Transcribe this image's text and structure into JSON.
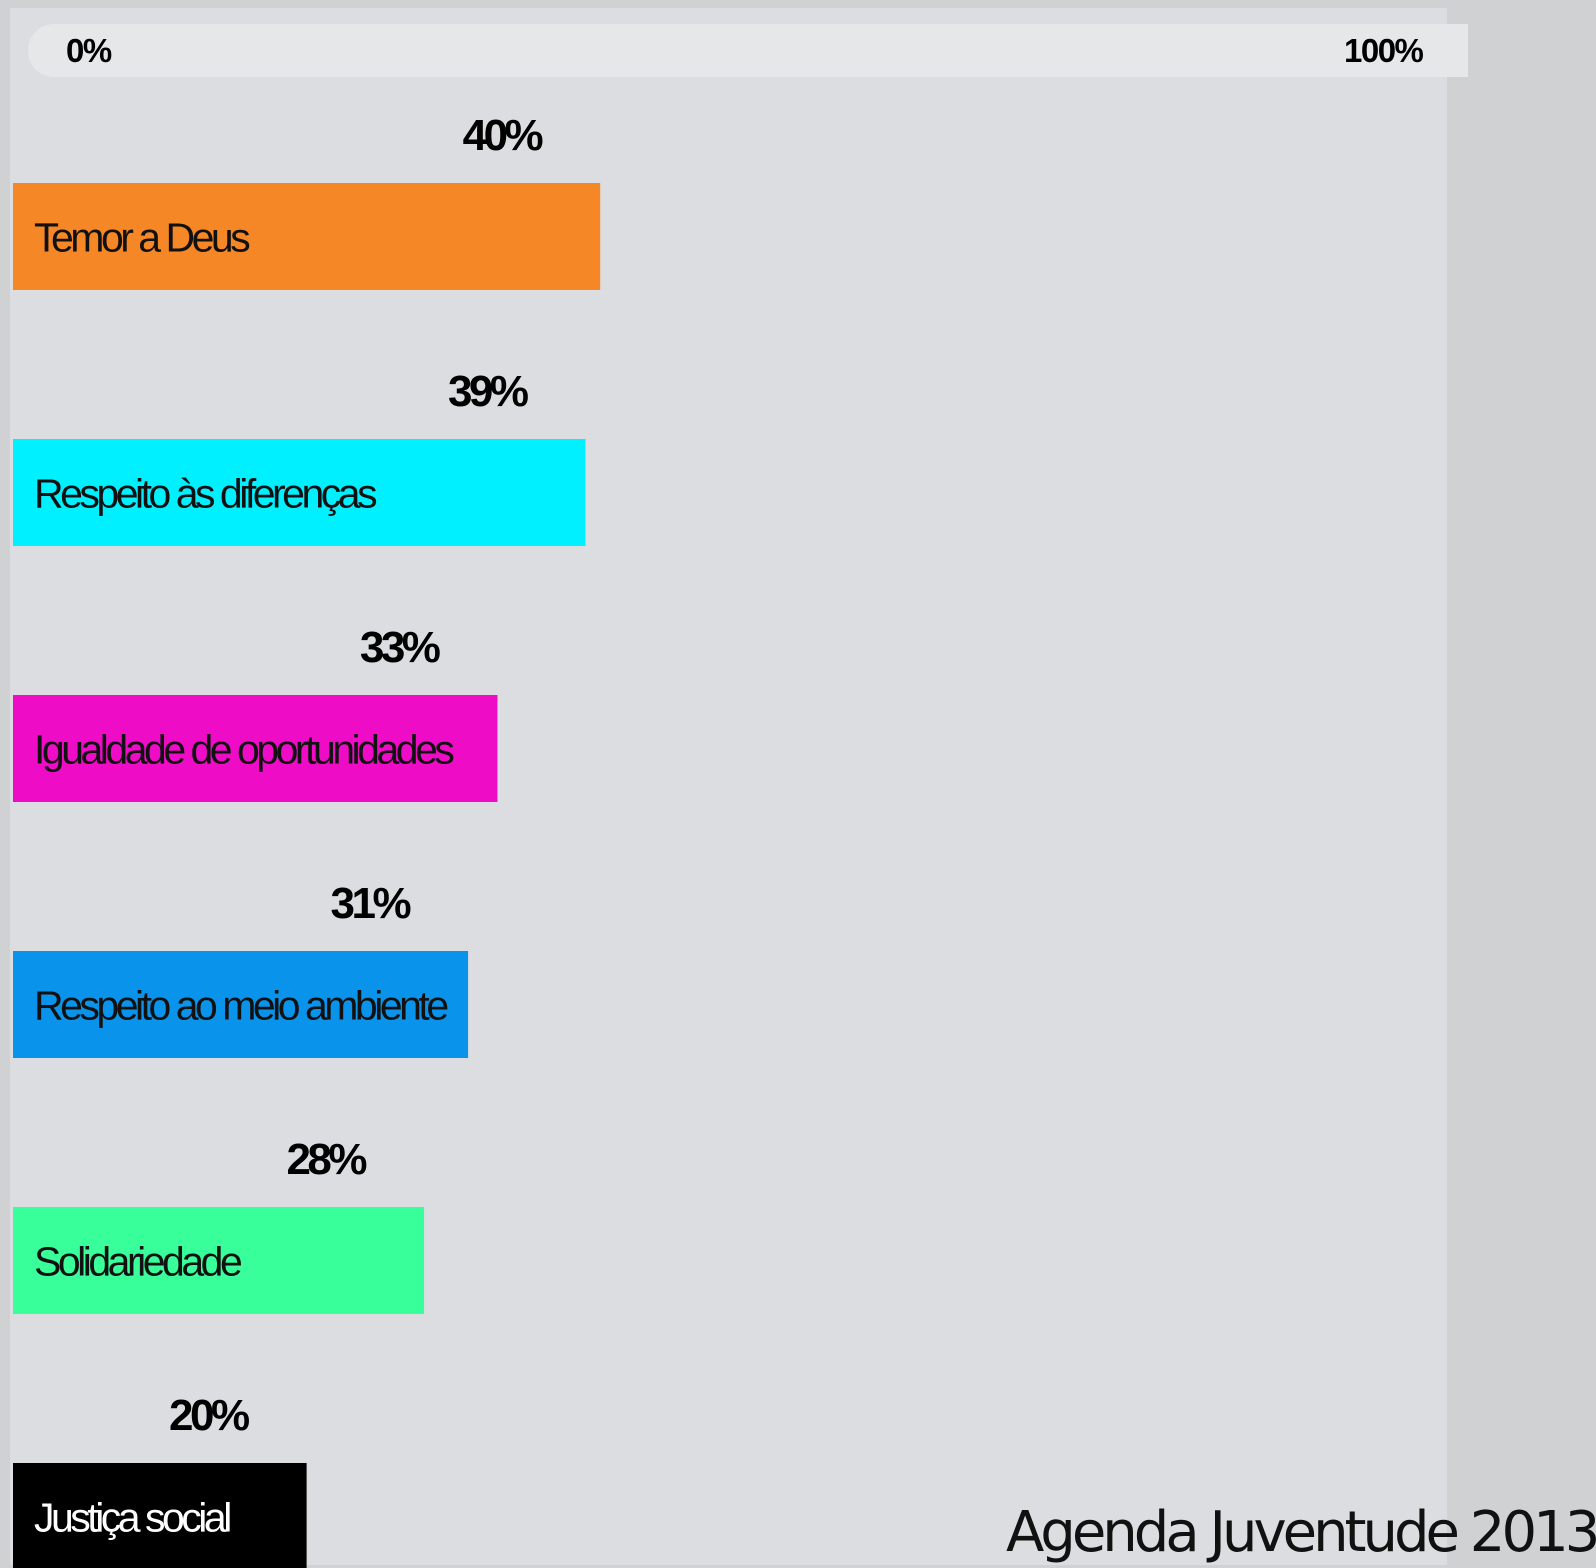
{
  "scale": {
    "min_label": "0%",
    "max_label": "100%"
  },
  "chart_data": {
    "type": "bar",
    "orientation": "horizontal",
    "categories": [
      "Temor a Deus",
      "Respeito às diferenças",
      "Igualdade de oportunidades",
      "Respeito ao meio ambiente",
      "Solidariedade",
      "Justiça social"
    ],
    "values": [
      40,
      39,
      33,
      31,
      28,
      20
    ],
    "value_labels": [
      "40%",
      "39%",
      "33%",
      "31%",
      "28%",
      "20%"
    ],
    "colors": [
      "#f58726",
      "#00f0ff",
      "#ee0cc6",
      "#0a93ea",
      "#38ff99",
      "#000000"
    ],
    "label_colors": [
      "#111111",
      "#111111",
      "#111111",
      "#111111",
      "#111111",
      "#ffffff"
    ],
    "xlim": [
      0,
      100
    ],
    "grid": false
  },
  "footer": {
    "source": "Agenda Juventude 2013"
  }
}
